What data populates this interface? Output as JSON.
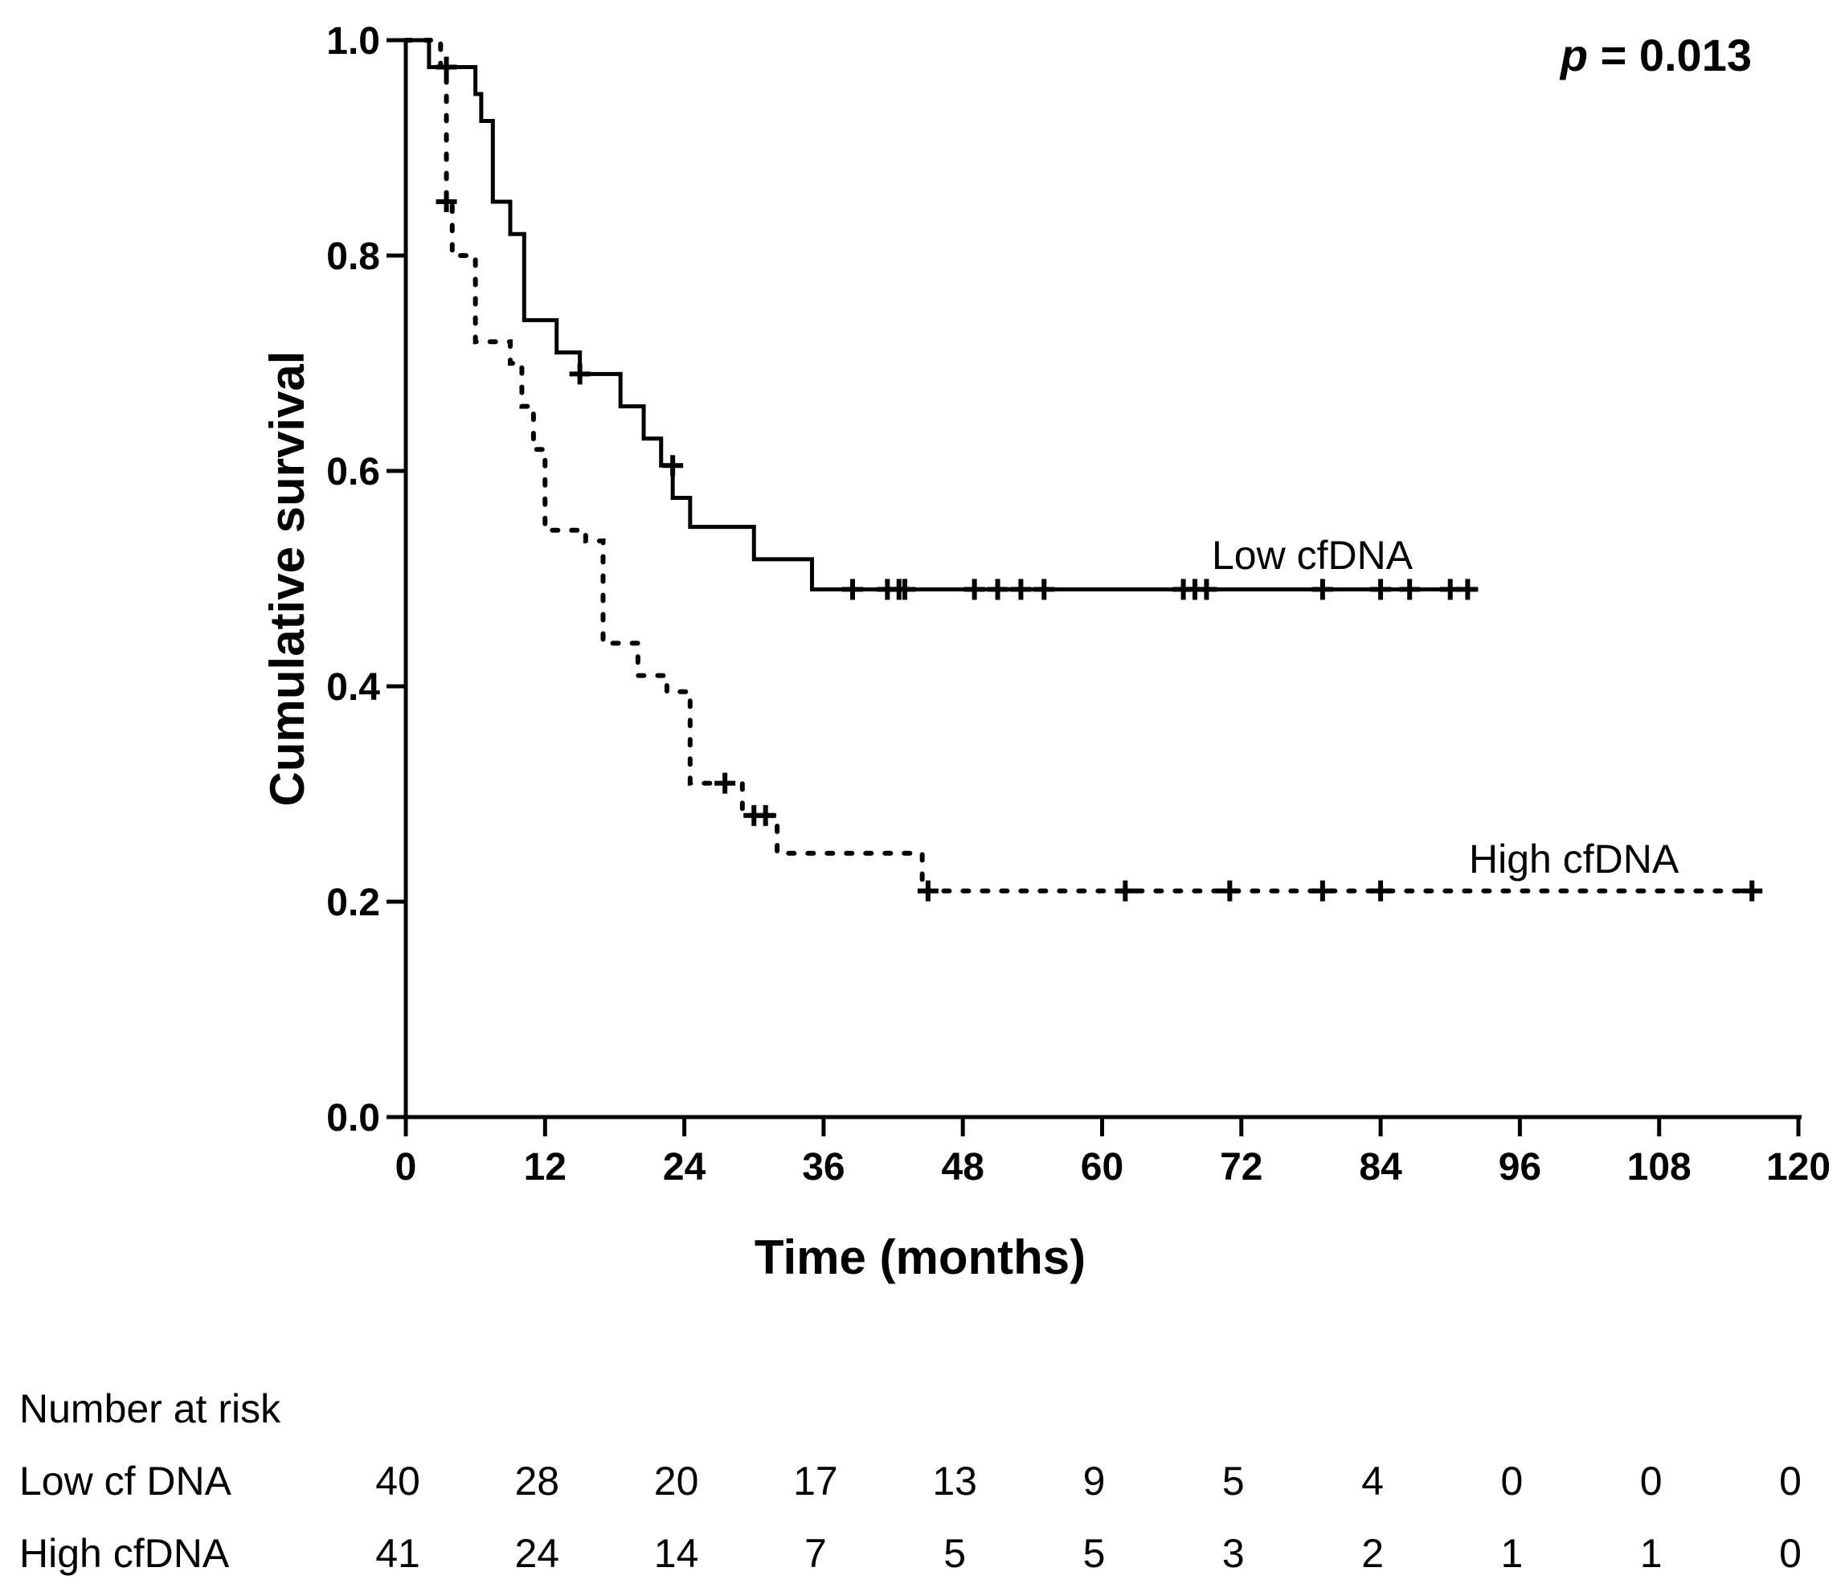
{
  "chart_data": {
    "type": "line",
    "subtype": "kaplan-meier",
    "xlabel": "Time (months)",
    "ylabel": "Cumulative survival",
    "xlim": [
      0,
      120
    ],
    "ylim": [
      0,
      1.0
    ],
    "x_ticks": [
      "0",
      "12",
      "24",
      "36",
      "48",
      "60",
      "72",
      "84",
      "96",
      "108",
      "120"
    ],
    "y_ticks": [
      "0.0",
      "0.2",
      "0.4",
      "0.6",
      "0.8",
      "1.0"
    ],
    "annotation": {
      "p_symbol": "p",
      "p_text": " = 0.013"
    },
    "series": [
      {
        "name": "Low cfDNA",
        "style": "solid",
        "steps": [
          [
            0,
            1.0
          ],
          [
            1,
            1.0
          ],
          [
            2,
            0.975
          ],
          [
            6,
            0.95
          ],
          [
            6.5,
            0.925
          ],
          [
            7.5,
            0.85
          ],
          [
            9,
            0.82
          ],
          [
            10.2,
            0.74
          ],
          [
            13,
            0.71
          ],
          [
            15,
            0.69
          ],
          [
            18.5,
            0.66
          ],
          [
            20.5,
            0.63
          ],
          [
            22,
            0.605
          ],
          [
            23,
            0.575
          ],
          [
            24.5,
            0.548
          ],
          [
            30,
            0.518
          ],
          [
            35,
            0.49
          ],
          [
            92,
            0.49
          ]
        ],
        "censored": [
          [
            15,
            0.69
          ],
          [
            23,
            0.605
          ],
          [
            38.5,
            0.49
          ],
          [
            41.5,
            0.49
          ],
          [
            42.5,
            0.49
          ],
          [
            43,
            0.49
          ],
          [
            49,
            0.49
          ],
          [
            51,
            0.49
          ],
          [
            53,
            0.49
          ],
          [
            55,
            0.49
          ],
          [
            67,
            0.49
          ],
          [
            68,
            0.49
          ],
          [
            69,
            0.49
          ],
          [
            79,
            0.49
          ],
          [
            84,
            0.49
          ],
          [
            86.5,
            0.49
          ],
          [
            90,
            0.49
          ],
          [
            91.5,
            0.49
          ]
        ]
      },
      {
        "name": "High cfDNA",
        "style": "dotted",
        "steps": [
          [
            0,
            1.0
          ],
          [
            3,
            0.975
          ],
          [
            3.5,
            0.85
          ],
          [
            4,
            0.8
          ],
          [
            6,
            0.72
          ],
          [
            9,
            0.7
          ],
          [
            10,
            0.66
          ],
          [
            11,
            0.62
          ],
          [
            12,
            0.545
          ],
          [
            15.5,
            0.535
          ],
          [
            17,
            0.44
          ],
          [
            20,
            0.41
          ],
          [
            22.5,
            0.395
          ],
          [
            24.5,
            0.31
          ],
          [
            29,
            0.28
          ],
          [
            32,
            0.245
          ],
          [
            44.5,
            0.21
          ],
          [
            116,
            0.21
          ]
        ],
        "censored": [
          [
            3.5,
            0.975
          ],
          [
            3.5,
            0.85
          ],
          [
            27.5,
            0.31
          ],
          [
            30,
            0.28
          ],
          [
            31,
            0.28
          ],
          [
            45,
            0.21
          ],
          [
            62,
            0.21
          ],
          [
            71,
            0.21
          ],
          [
            79,
            0.21
          ],
          [
            84,
            0.21
          ],
          [
            116,
            0.21
          ]
        ]
      }
    ],
    "risk_table": {
      "title": "Number at risk",
      "rows": [
        {
          "label": "Low cf DNA",
          "values": [
            "40",
            "28",
            "20",
            "17",
            "13",
            "9",
            "5",
            "4",
            "0",
            "0",
            "0"
          ]
        },
        {
          "label": "High cfDNA",
          "values": [
            "41",
            "24",
            "14",
            "7",
            "5",
            "5",
            "3",
            "2",
            "1",
            "1",
            "0"
          ]
        }
      ]
    }
  }
}
